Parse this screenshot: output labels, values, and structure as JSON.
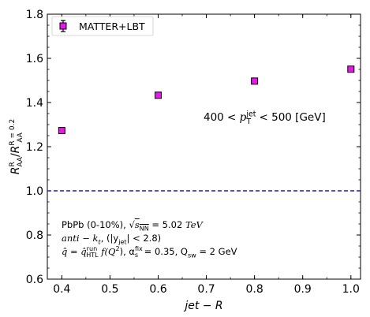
{
  "chart_data": {
    "type": "scatter",
    "title": "",
    "xlabel": "jet − R",
    "ylabel": "R_AA^R / R_AA^(R=0.2)",
    "xlim": [
      0.37,
      1.02
    ],
    "ylim": [
      0.6,
      1.8
    ],
    "xticks": [
      "0.4",
      "0.5",
      "0.6",
      "0.7",
      "0.8",
      "0.9",
      "1.0"
    ],
    "xtick_values": [
      0.4,
      0.5,
      0.6,
      0.7,
      0.8,
      0.9,
      1.0
    ],
    "yticks": [
      "0.6",
      "0.8",
      "1.0",
      "1.2",
      "1.4",
      "1.6",
      "1.8"
    ],
    "ytick_values": [
      0.6,
      0.8,
      1.0,
      1.2,
      1.4,
      1.6,
      1.8
    ],
    "legend_position": "top-left",
    "grid": false,
    "reference_line": {
      "y": 1.0,
      "style": "dashed",
      "color": "#1f1fbf"
    },
    "series": [
      {
        "name": "MATTER+LBT",
        "color": "#e619e6",
        "marker": "square",
        "x": [
          0.4,
          0.6,
          0.8,
          1.0
        ],
        "y": [
          1.273,
          1.433,
          1.497,
          1.551
        ],
        "yerr": [
          0.012,
          0.012,
          0.011,
          0.011
        ]
      }
    ]
  },
  "annotations": {
    "pt_range": {
      "pre": "400 < ",
      "p": "p",
      "sub": "T",
      "sup": "jet",
      "post": " < 500 [GeV]"
    },
    "line1": {
      "text": "PbPb (0-10%), ",
      "sqrt": "√",
      "s": "s",
      "nn": "NN",
      "val": " = 5.02 ",
      "unit": "TeV"
    },
    "line2": {
      "akt": "anti − k",
      "t": "t",
      "rest": ",  (|y",
      "jet": "jet",
      "end": "| < 2.8)"
    },
    "line3": {
      "q": "q̂ = q̂",
      "run": "run",
      "htl": "HTL",
      "f": " f(Q",
      "two": "2",
      "close": "),  α",
      "fix": "fix",
      "s": "s",
      "alpha_val": " = 0.35,  Q",
      "sw": "sw",
      "qsw_val": " = 2 GeV"
    }
  }
}
